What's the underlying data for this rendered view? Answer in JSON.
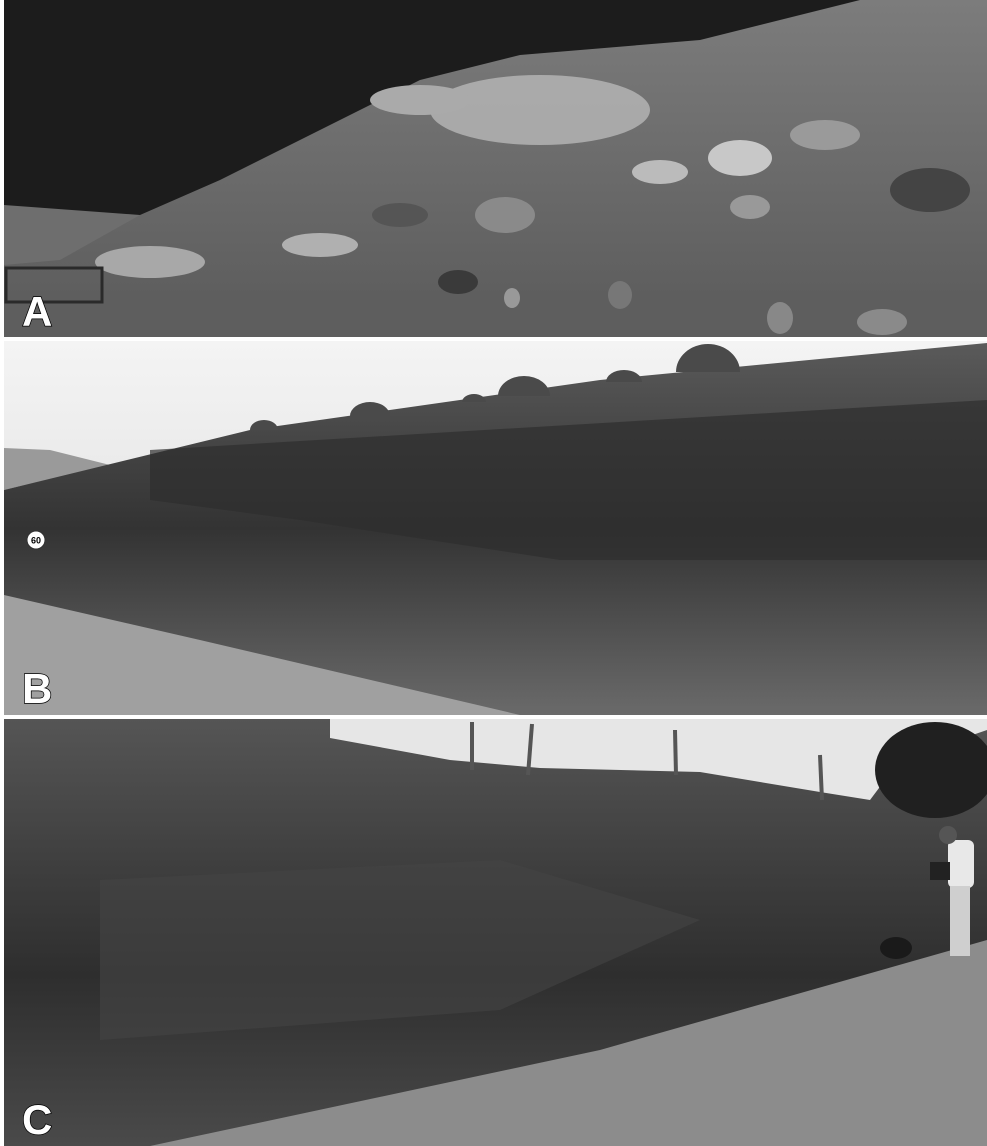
{
  "panels": [
    {
      "label": "A"
    },
    {
      "label": "B",
      "sign": "60"
    },
    {
      "label": "C"
    }
  ]
}
